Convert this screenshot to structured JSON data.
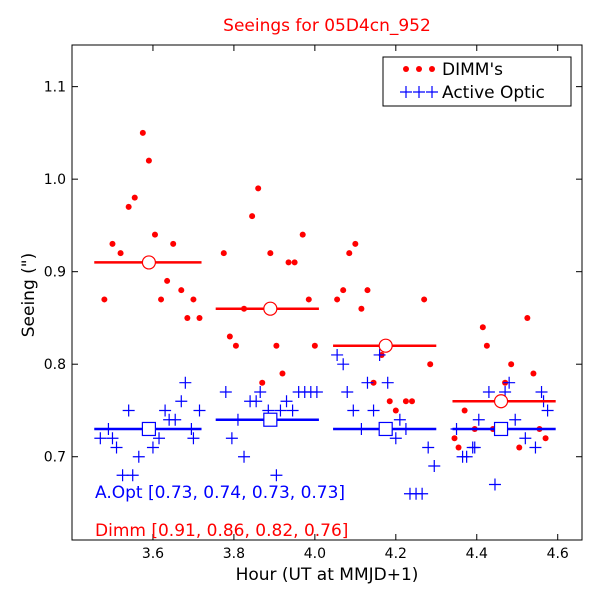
{
  "chart_data": {
    "type": "scatter",
    "title": "Seeings for 05D4cn_952",
    "xlabel": "Hour (UT at MMJD+1)",
    "ylabel": "Seeing (\")",
    "xlim": [
      3.4,
      4.66
    ],
    "ylim": [
      0.61,
      1.145
    ],
    "xticks": [
      3.6,
      3.8,
      4.0,
      4.2,
      4.4,
      4.6
    ],
    "xtick_labels": [
      "3.6",
      "3.8",
      "4.0",
      "4.2",
      "4.4",
      "4.6"
    ],
    "yticks": [
      0.7,
      0.8,
      0.9,
      1.0,
      1.1
    ],
    "ytick_labels": [
      "0.7",
      "0.8",
      "0.9",
      "1.0",
      "1.1"
    ],
    "grid": false,
    "legend_position": "top-right",
    "colors": {
      "dimm": "#ff0000",
      "ao": "#0000ff"
    },
    "legend": [
      {
        "name": "DIMM's",
        "marker": "dot",
        "color": "#ff0000"
      },
      {
        "name": "Active Optic",
        "marker": "plus",
        "color": "#0000ff"
      }
    ],
    "annotations": {
      "ao": "A.Opt [0.73, 0.74, 0.73, 0.73]",
      "dimm": "Dimm [0.91, 0.86, 0.82, 0.76]"
    },
    "series": [
      {
        "name": "DIMM's",
        "marker": "dot",
        "color": "#ff0000",
        "points": [
          [
            3.48,
            0.87
          ],
          [
            3.5,
            0.93
          ],
          [
            3.52,
            0.92
          ],
          [
            3.54,
            0.97
          ],
          [
            3.555,
            0.98
          ],
          [
            3.575,
            1.05
          ],
          [
            3.59,
            1.02
          ],
          [
            3.605,
            0.94
          ],
          [
            3.62,
            0.87
          ],
          [
            3.635,
            0.89
          ],
          [
            3.65,
            0.93
          ],
          [
            3.67,
            0.88
          ],
          [
            3.685,
            0.85
          ],
          [
            3.7,
            0.87
          ],
          [
            3.715,
            0.85
          ],
          [
            3.775,
            0.92
          ],
          [
            3.79,
            0.83
          ],
          [
            3.805,
            0.82
          ],
          [
            3.825,
            0.86
          ],
          [
            3.845,
            0.96
          ],
          [
            3.86,
            0.99
          ],
          [
            3.87,
            0.78
          ],
          [
            3.89,
            0.92
          ],
          [
            3.905,
            0.82
          ],
          [
            3.92,
            0.79
          ],
          [
            3.935,
            0.91
          ],
          [
            3.95,
            0.91
          ],
          [
            3.97,
            0.94
          ],
          [
            3.985,
            0.87
          ],
          [
            4.0,
            0.82
          ],
          [
            4.055,
            0.87
          ],
          [
            4.07,
            0.88
          ],
          [
            4.085,
            0.92
          ],
          [
            4.1,
            0.93
          ],
          [
            4.115,
            0.86
          ],
          [
            4.13,
            0.88
          ],
          [
            4.145,
            0.78
          ],
          [
            4.165,
            0.81
          ],
          [
            4.185,
            0.76
          ],
          [
            4.2,
            0.75
          ],
          [
            4.225,
            0.76
          ],
          [
            4.24,
            0.76
          ],
          [
            4.27,
            0.87
          ],
          [
            4.285,
            0.8
          ],
          [
            4.345,
            0.72
          ],
          [
            4.355,
            0.71
          ],
          [
            4.37,
            0.75
          ],
          [
            4.395,
            0.73
          ],
          [
            4.415,
            0.84
          ],
          [
            4.425,
            0.82
          ],
          [
            4.44,
            0.73
          ],
          [
            4.47,
            0.78
          ],
          [
            4.485,
            0.8
          ],
          [
            4.505,
            0.71
          ],
          [
            4.525,
            0.85
          ],
          [
            4.54,
            0.79
          ],
          [
            4.555,
            0.73
          ],
          [
            4.57,
            0.72
          ]
        ]
      },
      {
        "name": "Active Optic",
        "marker": "plus",
        "color": "#0000ff",
        "points": [
          [
            3.47,
            0.72
          ],
          [
            3.49,
            0.73
          ],
          [
            3.5,
            0.72
          ],
          [
            3.51,
            0.71
          ],
          [
            3.525,
            0.68
          ],
          [
            3.54,
            0.75
          ],
          [
            3.55,
            0.68
          ],
          [
            3.565,
            0.7
          ],
          [
            3.575,
            0.73
          ],
          [
            3.585,
            0.73
          ],
          [
            3.6,
            0.71
          ],
          [
            3.615,
            0.72
          ],
          [
            3.63,
            0.75
          ],
          [
            3.64,
            0.74
          ],
          [
            3.655,
            0.74
          ],
          [
            3.67,
            0.76
          ],
          [
            3.68,
            0.78
          ],
          [
            3.695,
            0.73
          ],
          [
            3.7,
            0.72
          ],
          [
            3.715,
            0.75
          ],
          [
            3.78,
            0.77
          ],
          [
            3.795,
            0.72
          ],
          [
            3.81,
            0.74
          ],
          [
            3.825,
            0.7
          ],
          [
            3.84,
            0.76
          ],
          [
            3.855,
            0.76
          ],
          [
            3.865,
            0.77
          ],
          [
            3.885,
            0.75
          ],
          [
            3.905,
            0.68
          ],
          [
            3.915,
            0.75
          ],
          [
            3.93,
            0.76
          ],
          [
            3.945,
            0.75
          ],
          [
            3.96,
            0.77
          ],
          [
            3.975,
            0.77
          ],
          [
            3.99,
            0.77
          ],
          [
            4.005,
            0.77
          ],
          [
            4.055,
            0.81
          ],
          [
            4.07,
            0.8
          ],
          [
            4.08,
            0.77
          ],
          [
            4.095,
            0.75
          ],
          [
            4.115,
            0.73
          ],
          [
            4.13,
            0.78
          ],
          [
            4.145,
            0.75
          ],
          [
            4.16,
            0.81
          ],
          [
            4.18,
            0.78
          ],
          [
            4.2,
            0.72
          ],
          [
            4.21,
            0.74
          ],
          [
            4.225,
            0.73
          ],
          [
            4.235,
            0.66
          ],
          [
            4.25,
            0.66
          ],
          [
            4.265,
            0.66
          ],
          [
            4.28,
            0.71
          ],
          [
            4.295,
            0.69
          ],
          [
            4.35,
            0.73
          ],
          [
            4.365,
            0.7
          ],
          [
            4.375,
            0.7
          ],
          [
            4.39,
            0.71
          ],
          [
            4.395,
            0.71
          ],
          [
            4.405,
            0.74
          ],
          [
            4.43,
            0.77
          ],
          [
            4.445,
            0.67
          ],
          [
            4.47,
            0.77
          ],
          [
            4.48,
            0.78
          ],
          [
            4.495,
            0.74
          ],
          [
            4.52,
            0.72
          ],
          [
            4.545,
            0.71
          ],
          [
            4.56,
            0.77
          ],
          [
            4.565,
            0.76
          ],
          [
            4.575,
            0.75
          ]
        ]
      }
    ],
    "medians": {
      "dimm": [
        {
          "x_range": [
            3.455,
            3.72
          ],
          "value": 0.91,
          "marker_x": 3.59
        },
        {
          "x_range": [
            3.755,
            4.01
          ],
          "value": 0.86,
          "marker_x": 3.89
        },
        {
          "x_range": [
            4.045,
            4.3
          ],
          "value": 0.82,
          "marker_x": 4.175
        },
        {
          "x_range": [
            4.34,
            4.595
          ],
          "value": 0.76,
          "marker_x": 4.46
        }
      ],
      "ao": [
        {
          "x_range": [
            3.455,
            3.72
          ],
          "value": 0.73,
          "marker_x": 3.59
        },
        {
          "x_range": [
            3.755,
            4.01
          ],
          "value": 0.74,
          "marker_x": 3.89
        },
        {
          "x_range": [
            4.045,
            4.3
          ],
          "value": 0.73,
          "marker_x": 4.175
        },
        {
          "x_range": [
            4.34,
            4.595
          ],
          "value": 0.73,
          "marker_x": 4.46
        }
      ]
    }
  }
}
